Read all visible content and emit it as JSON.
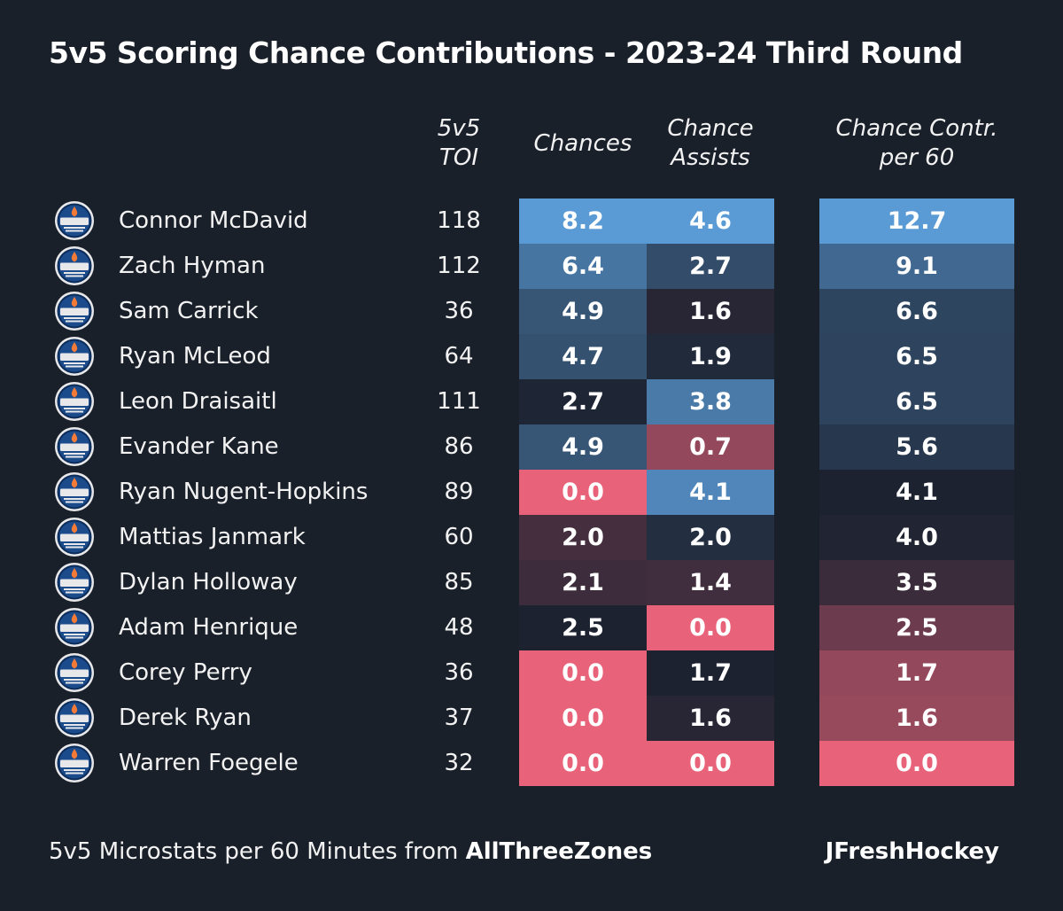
{
  "title": "5v5 Scoring Chance Contributions - 2023-24 Third Round",
  "headers": {
    "toi": "5v5 TOI",
    "chances": "Chances",
    "assists_l1": "Chance",
    "assists_l2": "Assists",
    "contr_l1": "Chance Contr.",
    "contr_l2": "per 60"
  },
  "colors": {
    "background": "#1a202a",
    "high_blue": "#5b9bd5",
    "low_red": "#e8637a",
    "neutral": "#1c2230"
  },
  "icon": "oilers-logo-icon",
  "chart_data": {
    "type": "table",
    "columns": [
      "5v5 TOI",
      "Chances",
      "Chance Assists",
      "Chance Contr. per 60"
    ],
    "rows": [
      {
        "player": "Connor McDavid",
        "toi": "118",
        "chances": "8.2",
        "assists": "4.6",
        "contr": "12.7"
      },
      {
        "player": "Zach Hyman",
        "toi": "112",
        "chances": "6.4",
        "assists": "2.7",
        "contr": "9.1"
      },
      {
        "player": "Sam Carrick",
        "toi": "36",
        "chances": "4.9",
        "assists": "1.6",
        "contr": "6.6"
      },
      {
        "player": "Ryan McLeod",
        "toi": "64",
        "chances": "4.7",
        "assists": "1.9",
        "contr": "6.5"
      },
      {
        "player": "Leon Draisaitl",
        "toi": "111",
        "chances": "2.7",
        "assists": "3.8",
        "contr": "6.5"
      },
      {
        "player": "Evander Kane",
        "toi": "86",
        "chances": "4.9",
        "assists": "0.7",
        "contr": "5.6"
      },
      {
        "player": "Ryan Nugent-Hopkins",
        "toi": "89",
        "chances": "0.0",
        "assists": "4.1",
        "contr": "4.1"
      },
      {
        "player": "Mattias Janmark",
        "toi": "60",
        "chances": "2.0",
        "assists": "2.0",
        "contr": "4.0"
      },
      {
        "player": "Dylan Holloway",
        "toi": "85",
        "chances": "2.1",
        "assists": "1.4",
        "contr": "3.5"
      },
      {
        "player": "Adam Henrique",
        "toi": "48",
        "chances": "2.5",
        "assists": "0.0",
        "contr": "2.5"
      },
      {
        "player": "Corey Perry",
        "toi": "36",
        "chances": "0.0",
        "assists": "1.7",
        "contr": "1.7"
      },
      {
        "player": "Derek Ryan",
        "toi": "37",
        "chances": "0.0",
        "assists": "1.6",
        "contr": "1.6"
      },
      {
        "player": "Warren Foegele",
        "toi": "32",
        "chances": "0.0",
        "assists": "0.0",
        "contr": "0.0"
      }
    ]
  },
  "footer": {
    "source_prefix": "5v5 Microstats per 60 Minutes from",
    "source_name": "AllThreeZones",
    "credit": "JFreshHockey"
  }
}
